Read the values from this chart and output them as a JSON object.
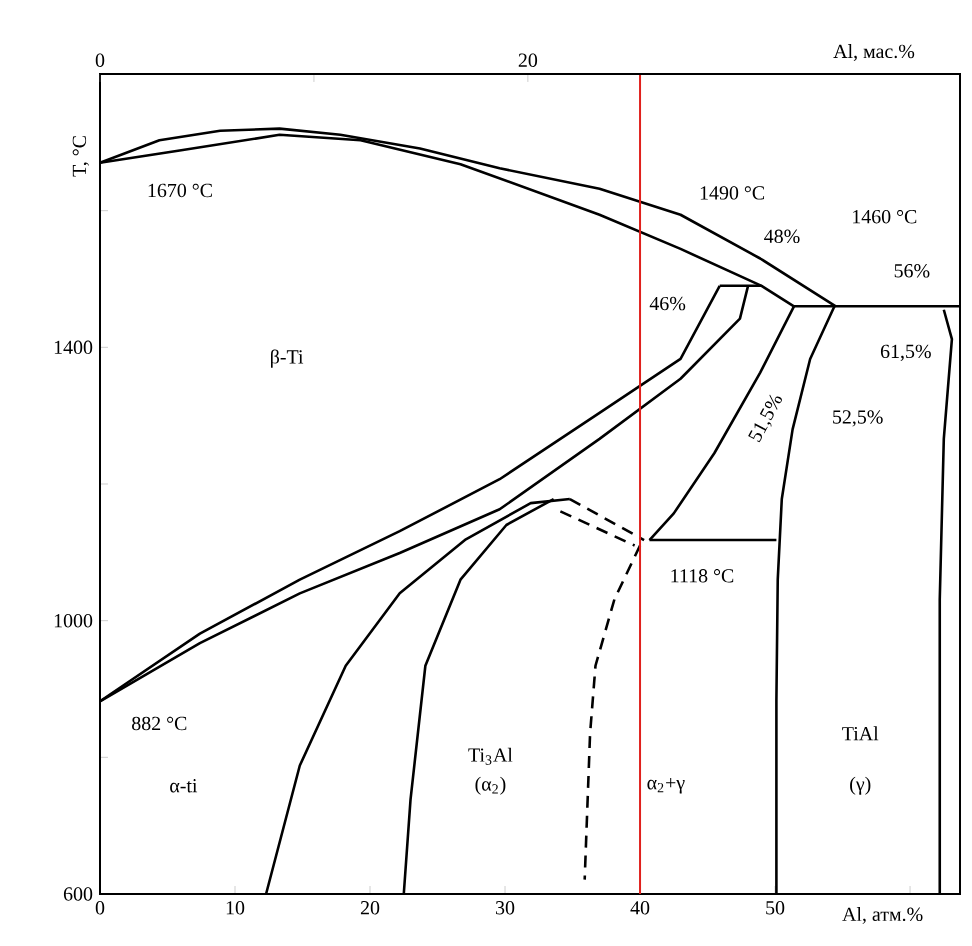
{
  "chart_data": {
    "type": "line",
    "xlabel": "Al, атм.%",
    "ylabel": "T, °C",
    "x2label": "Al, мас.%",
    "xlim": [
      0,
      63.7
    ],
    "ylim": [
      600,
      1800
    ],
    "xticks": [
      0,
      10,
      20,
      30,
      40,
      50,
      {
        "value": 60,
        "label": null
      }
    ],
    "yticks": [
      600,
      {
        "value": 800,
        "label": null
      },
      1000,
      {
        "value": 1200,
        "label": null
      },
      1400,
      {
        "value": 1600,
        "label": null
      }
    ],
    "x2lim": [
      0,
      40.2
    ],
    "x2ticks": [
      0,
      {
        "value": 10,
        "label": null
      },
      20
    ],
    "series": [
      {
        "color": "#000000",
        "x": [
          0,
          4.4,
          8.9,
          13.3,
          17.8,
          23.7,
          29.6,
          37.0,
          43.0,
          48.9,
          54.5
        ],
        "values": [
          1670,
          1703,
          1717,
          1720,
          1711,
          1691,
          1662,
          1632,
          1594,
          1530,
          1460
        ]
      },
      {
        "color": "#000000",
        "x": [
          0,
          5.9,
          13.3,
          19.3,
          26.7,
          37.0,
          43.0,
          49.0,
          51.4
        ],
        "values": [
          1670,
          1688,
          1711,
          1703,
          1668,
          1594,
          1544,
          1490,
          1460
        ]
      },
      {
        "color": "#000000",
        "x": [
          45.9,
          49.0
        ],
        "values": [
          1490,
          1490
        ]
      },
      {
        "color": "#000000",
        "x": [
          51.4,
          63.7
        ],
        "values": [
          1460,
          1460
        ]
      },
      {
        "color": "#000000",
        "x": [
          0,
          7.4,
          14.8,
          22.2,
          29.6,
          37.0,
          43.0,
          45.9
        ],
        "values": [
          882,
          981,
          1060,
          1131,
          1207,
          1304,
          1383,
          1490
        ]
      },
      {
        "color": "#000000",
        "x": [
          0,
          7.4,
          14.8,
          22.2,
          29.6,
          37.0,
          43.0,
          47.4,
          48.0
        ],
        "values": [
          882,
          967,
          1040,
          1099,
          1163,
          1266,
          1354,
          1442,
          1490
        ]
      },
      {
        "color": "#000000",
        "x": [
          51.4,
          48.9,
          45.5,
          42.5,
          40.7
        ],
        "values": [
          1460,
          1363,
          1245,
          1157,
          1118
        ]
      },
      {
        "color": "#000000",
        "x": [
          54.4,
          52.6,
          51.3,
          50.5,
          50.2,
          50.1,
          50.1
        ],
        "values": [
          1460,
          1383,
          1280,
          1178,
          1060,
          884,
          600
        ]
      },
      {
        "color": "#000000",
        "x": [
          62.5,
          63.1,
          62.5,
          62.2,
          62.2
        ],
        "values": [
          1455,
          1412,
          1266,
          1031,
          600
        ]
      },
      {
        "color": "#000000",
        "x": [
          40.7,
          50.1
        ],
        "values": [
          1118,
          1118
        ]
      },
      {
        "color": "#000000",
        "x": [
          12.3,
          14.8,
          18.2,
          22.2,
          27.1,
          31.9,
          34.8
        ],
        "values": [
          600,
          788,
          934,
          1040,
          1119,
          1172,
          1178
        ]
      },
      {
        "color": "#000000",
        "x": [
          22.5,
          23.0,
          24.1,
          26.7,
          30.1,
          33.6
        ],
        "values": [
          600,
          738,
          934,
          1060,
          1140,
          1178
        ]
      },
      {
        "color": "#000000",
        "line_style": "dashed",
        "x": [
          34.8,
          40.3
        ],
        "values": [
          1178,
          1118
        ]
      },
      {
        "color": "#000000",
        "line_style": "dashed",
        "x": [
          34.1,
          39.6
        ],
        "values": [
          1160,
          1110
        ]
      },
      {
        "color": "#000000",
        "line_style": "dashed",
        "x": [
          40.0,
          38.1,
          36.7,
          36.3,
          35.9
        ],
        "values": [
          1110,
          1031,
          934,
          835,
          621
        ]
      }
    ],
    "ref_lines": [
      {
        "axis": "x",
        "value": 40,
        "color": "#e0201c"
      }
    ],
    "annotations": [
      "1670 °C",
      "1490 °C",
      "1460 °C",
      "48%",
      "46%",
      "56%",
      "61,5%",
      "51,5%",
      "52,5%",
      "1118 °C",
      "β-Ti",
      "882 °C",
      "α-ti",
      "Ti$_{3}$Al",
      "(α$_{2}$)",
      "α$_{2}$+γ",
      "TiAl",
      "(γ)"
    ]
  }
}
